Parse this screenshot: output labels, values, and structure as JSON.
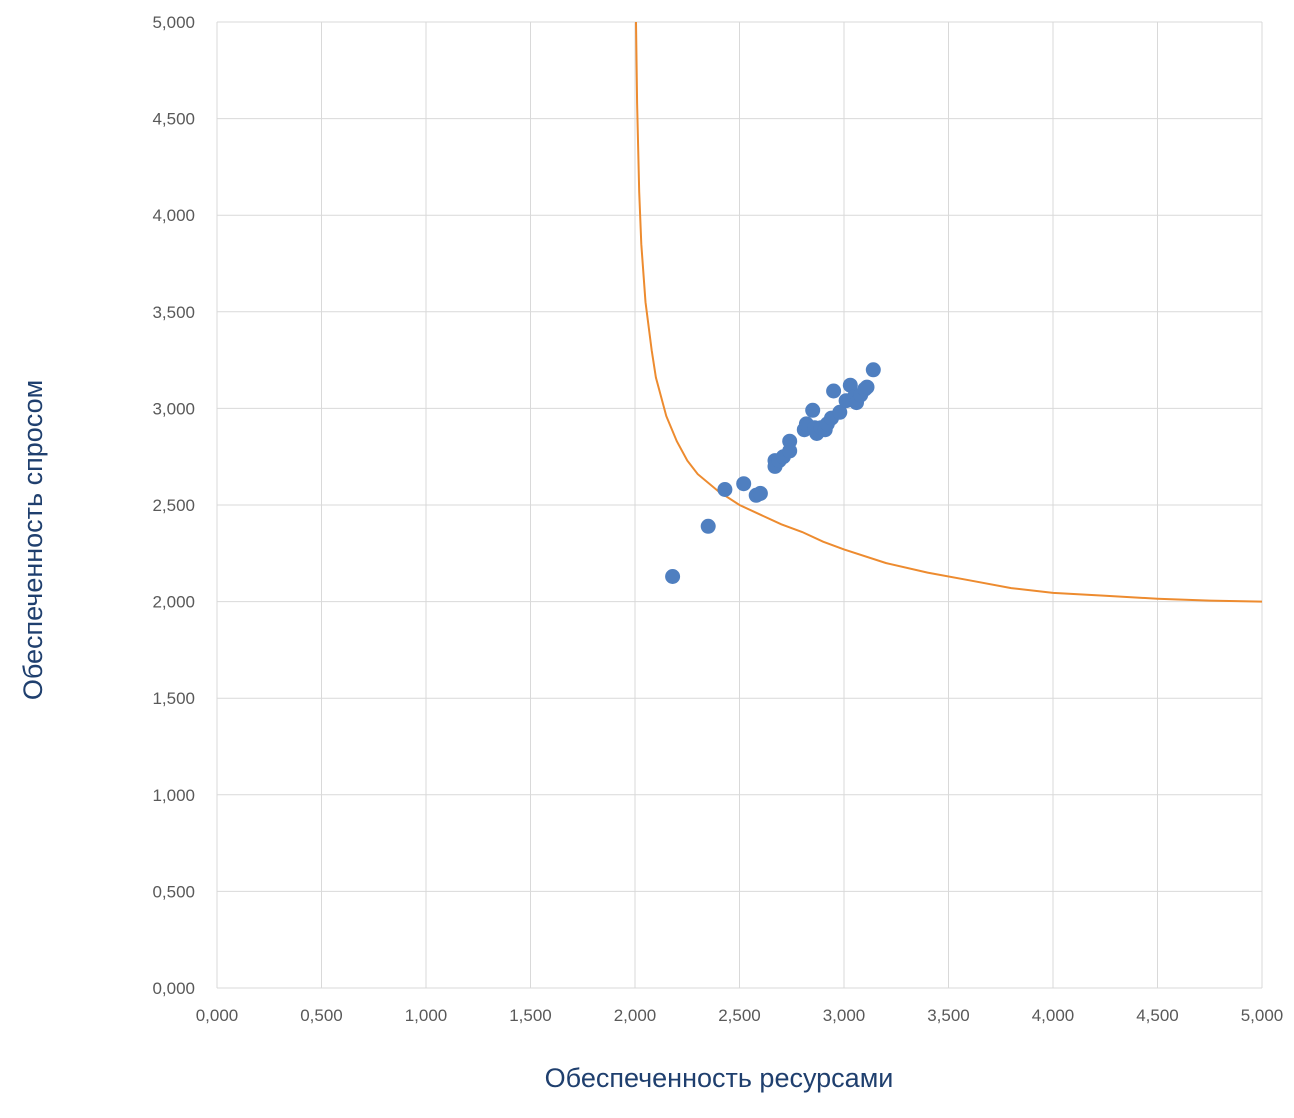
{
  "chart_data": {
    "type": "scatter",
    "title": "",
    "xlabel": "Обеспеченность ресурсами",
    "ylabel": "Обеспеченность спросом",
    "xlim": [
      0,
      5
    ],
    "ylim": [
      0,
      5
    ],
    "x_ticks": [
      "0,000",
      "0,500",
      "1,000",
      "1,500",
      "2,000",
      "2,500",
      "3,000",
      "3,500",
      "4,000",
      "4,500",
      "5,000"
    ],
    "y_ticks": [
      "0,000",
      "0,500",
      "1,000",
      "1,500",
      "2,000",
      "2,500",
      "3,000",
      "3,500",
      "4,000",
      "4,500",
      "5,000"
    ],
    "grid": true,
    "legend": "none",
    "colors": {
      "points": "#4f7fc0",
      "curve": "#ed8b2f",
      "grid": "#d9d9d9",
      "axis_title": "#1f3f6e"
    },
    "series": [
      {
        "type": "scatter",
        "points": [
          [
            2.18,
            2.13
          ],
          [
            2.35,
            2.39
          ],
          [
            2.43,
            2.58
          ],
          [
            2.52,
            2.61
          ],
          [
            2.58,
            2.55
          ],
          [
            2.6,
            2.56
          ],
          [
            2.67,
            2.73
          ],
          [
            2.67,
            2.7
          ],
          [
            2.69,
            2.73
          ],
          [
            2.71,
            2.75
          ],
          [
            2.74,
            2.83
          ],
          [
            2.74,
            2.78
          ],
          [
            2.81,
            2.89
          ],
          [
            2.82,
            2.92
          ],
          [
            2.85,
            2.99
          ],
          [
            2.86,
            2.9
          ],
          [
            2.87,
            2.87
          ],
          [
            2.89,
            2.9
          ],
          [
            2.91,
            2.89
          ],
          [
            2.92,
            2.92
          ],
          [
            2.94,
            2.95
          ],
          [
            2.95,
            3.09
          ],
          [
            2.98,
            2.98
          ],
          [
            3.01,
            3.04
          ],
          [
            3.03,
            3.12
          ],
          [
            3.05,
            3.06
          ],
          [
            3.06,
            3.03
          ],
          [
            3.08,
            3.07
          ],
          [
            3.1,
            3.1
          ],
          [
            3.11,
            3.11
          ],
          [
            3.14,
            3.2
          ]
        ]
      },
      {
        "type": "line",
        "points": [
          [
            2.005,
            5.0
          ],
          [
            2.01,
            4.58
          ],
          [
            2.02,
            4.12
          ],
          [
            2.03,
            3.85
          ],
          [
            2.05,
            3.55
          ],
          [
            2.08,
            3.3
          ],
          [
            2.1,
            3.16
          ],
          [
            2.15,
            2.96
          ],
          [
            2.2,
            2.83
          ],
          [
            2.25,
            2.73
          ],
          [
            2.3,
            2.66
          ],
          [
            2.4,
            2.57
          ],
          [
            2.5,
            2.5
          ],
          [
            2.6,
            2.45
          ],
          [
            2.7,
            2.4
          ],
          [
            2.8,
            2.36
          ],
          [
            2.9,
            2.31
          ],
          [
            3.0,
            2.27
          ],
          [
            3.2,
            2.2
          ],
          [
            3.4,
            2.15
          ],
          [
            3.6,
            2.11
          ],
          [
            3.8,
            2.07
          ],
          [
            4.0,
            2.045
          ],
          [
            4.25,
            2.03
          ],
          [
            4.5,
            2.015
          ],
          [
            4.75,
            2.005
          ],
          [
            5.0,
            2.0
          ]
        ]
      }
    ]
  }
}
